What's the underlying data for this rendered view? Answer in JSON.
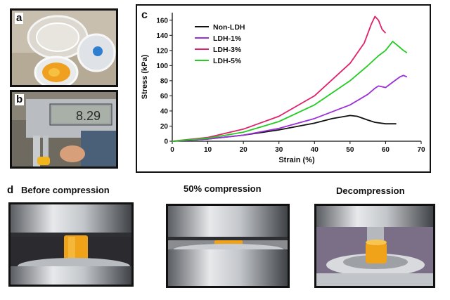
{
  "panels": {
    "a": {
      "label": "a"
    },
    "b": {
      "label": "b",
      "caliper_reading": "8.29"
    },
    "c": {
      "label": "c"
    },
    "d": {
      "label": "d",
      "captions": [
        "Before compression",
        "50% compression",
        "Decompression"
      ]
    }
  },
  "chart_data": {
    "type": "line",
    "xlabel": "Strain (%)",
    "ylabel": "Stress (kPa)",
    "xlim": [
      0,
      70
    ],
    "ylim": [
      0,
      170
    ],
    "xticks": [
      0,
      10,
      20,
      30,
      40,
      50,
      60,
      70
    ],
    "yticks": [
      0,
      20,
      40,
      60,
      80,
      100,
      120,
      140,
      160
    ],
    "legend_position": "top-left",
    "grid": false,
    "series": [
      {
        "name": "Non-LDH",
        "color": "#111111",
        "points": [
          [
            0,
            0
          ],
          [
            10,
            3
          ],
          [
            20,
            8
          ],
          [
            30,
            15
          ],
          [
            40,
            24
          ],
          [
            45,
            30
          ],
          [
            50,
            34
          ],
          [
            52,
            33
          ],
          [
            55,
            28
          ],
          [
            57,
            25
          ],
          [
            60,
            23
          ],
          [
            63,
            23
          ]
        ]
      },
      {
        "name": "LDH-1%",
        "color": "#9b30d9",
        "points": [
          [
            0,
            0
          ],
          [
            10,
            3
          ],
          [
            20,
            8
          ],
          [
            30,
            17
          ],
          [
            40,
            30
          ],
          [
            50,
            48
          ],
          [
            55,
            62
          ],
          [
            57,
            70
          ],
          [
            58,
            73
          ],
          [
            59,
            72
          ],
          [
            60,
            71
          ],
          [
            62,
            78
          ],
          [
            64,
            85
          ],
          [
            65,
            87
          ],
          [
            66,
            85
          ]
        ]
      },
      {
        "name": "LDH-3%",
        "color": "#e0206a",
        "points": [
          [
            0,
            0
          ],
          [
            10,
            5
          ],
          [
            20,
            16
          ],
          [
            30,
            33
          ],
          [
            40,
            60
          ],
          [
            50,
            103
          ],
          [
            54,
            130
          ],
          [
            56,
            155
          ],
          [
            57,
            165
          ],
          [
            58,
            160
          ],
          [
            59,
            148
          ],
          [
            60,
            143
          ]
        ]
      },
      {
        "name": "LDH-5%",
        "color": "#22cc22",
        "points": [
          [
            0,
            0
          ],
          [
            10,
            4
          ],
          [
            20,
            12
          ],
          [
            30,
            26
          ],
          [
            40,
            48
          ],
          [
            50,
            80
          ],
          [
            55,
            100
          ],
          [
            58,
            113
          ],
          [
            60,
            120
          ],
          [
            62,
            132
          ],
          [
            63,
            128
          ],
          [
            64,
            124
          ],
          [
            65,
            120
          ],
          [
            66,
            117
          ]
        ]
      }
    ]
  }
}
